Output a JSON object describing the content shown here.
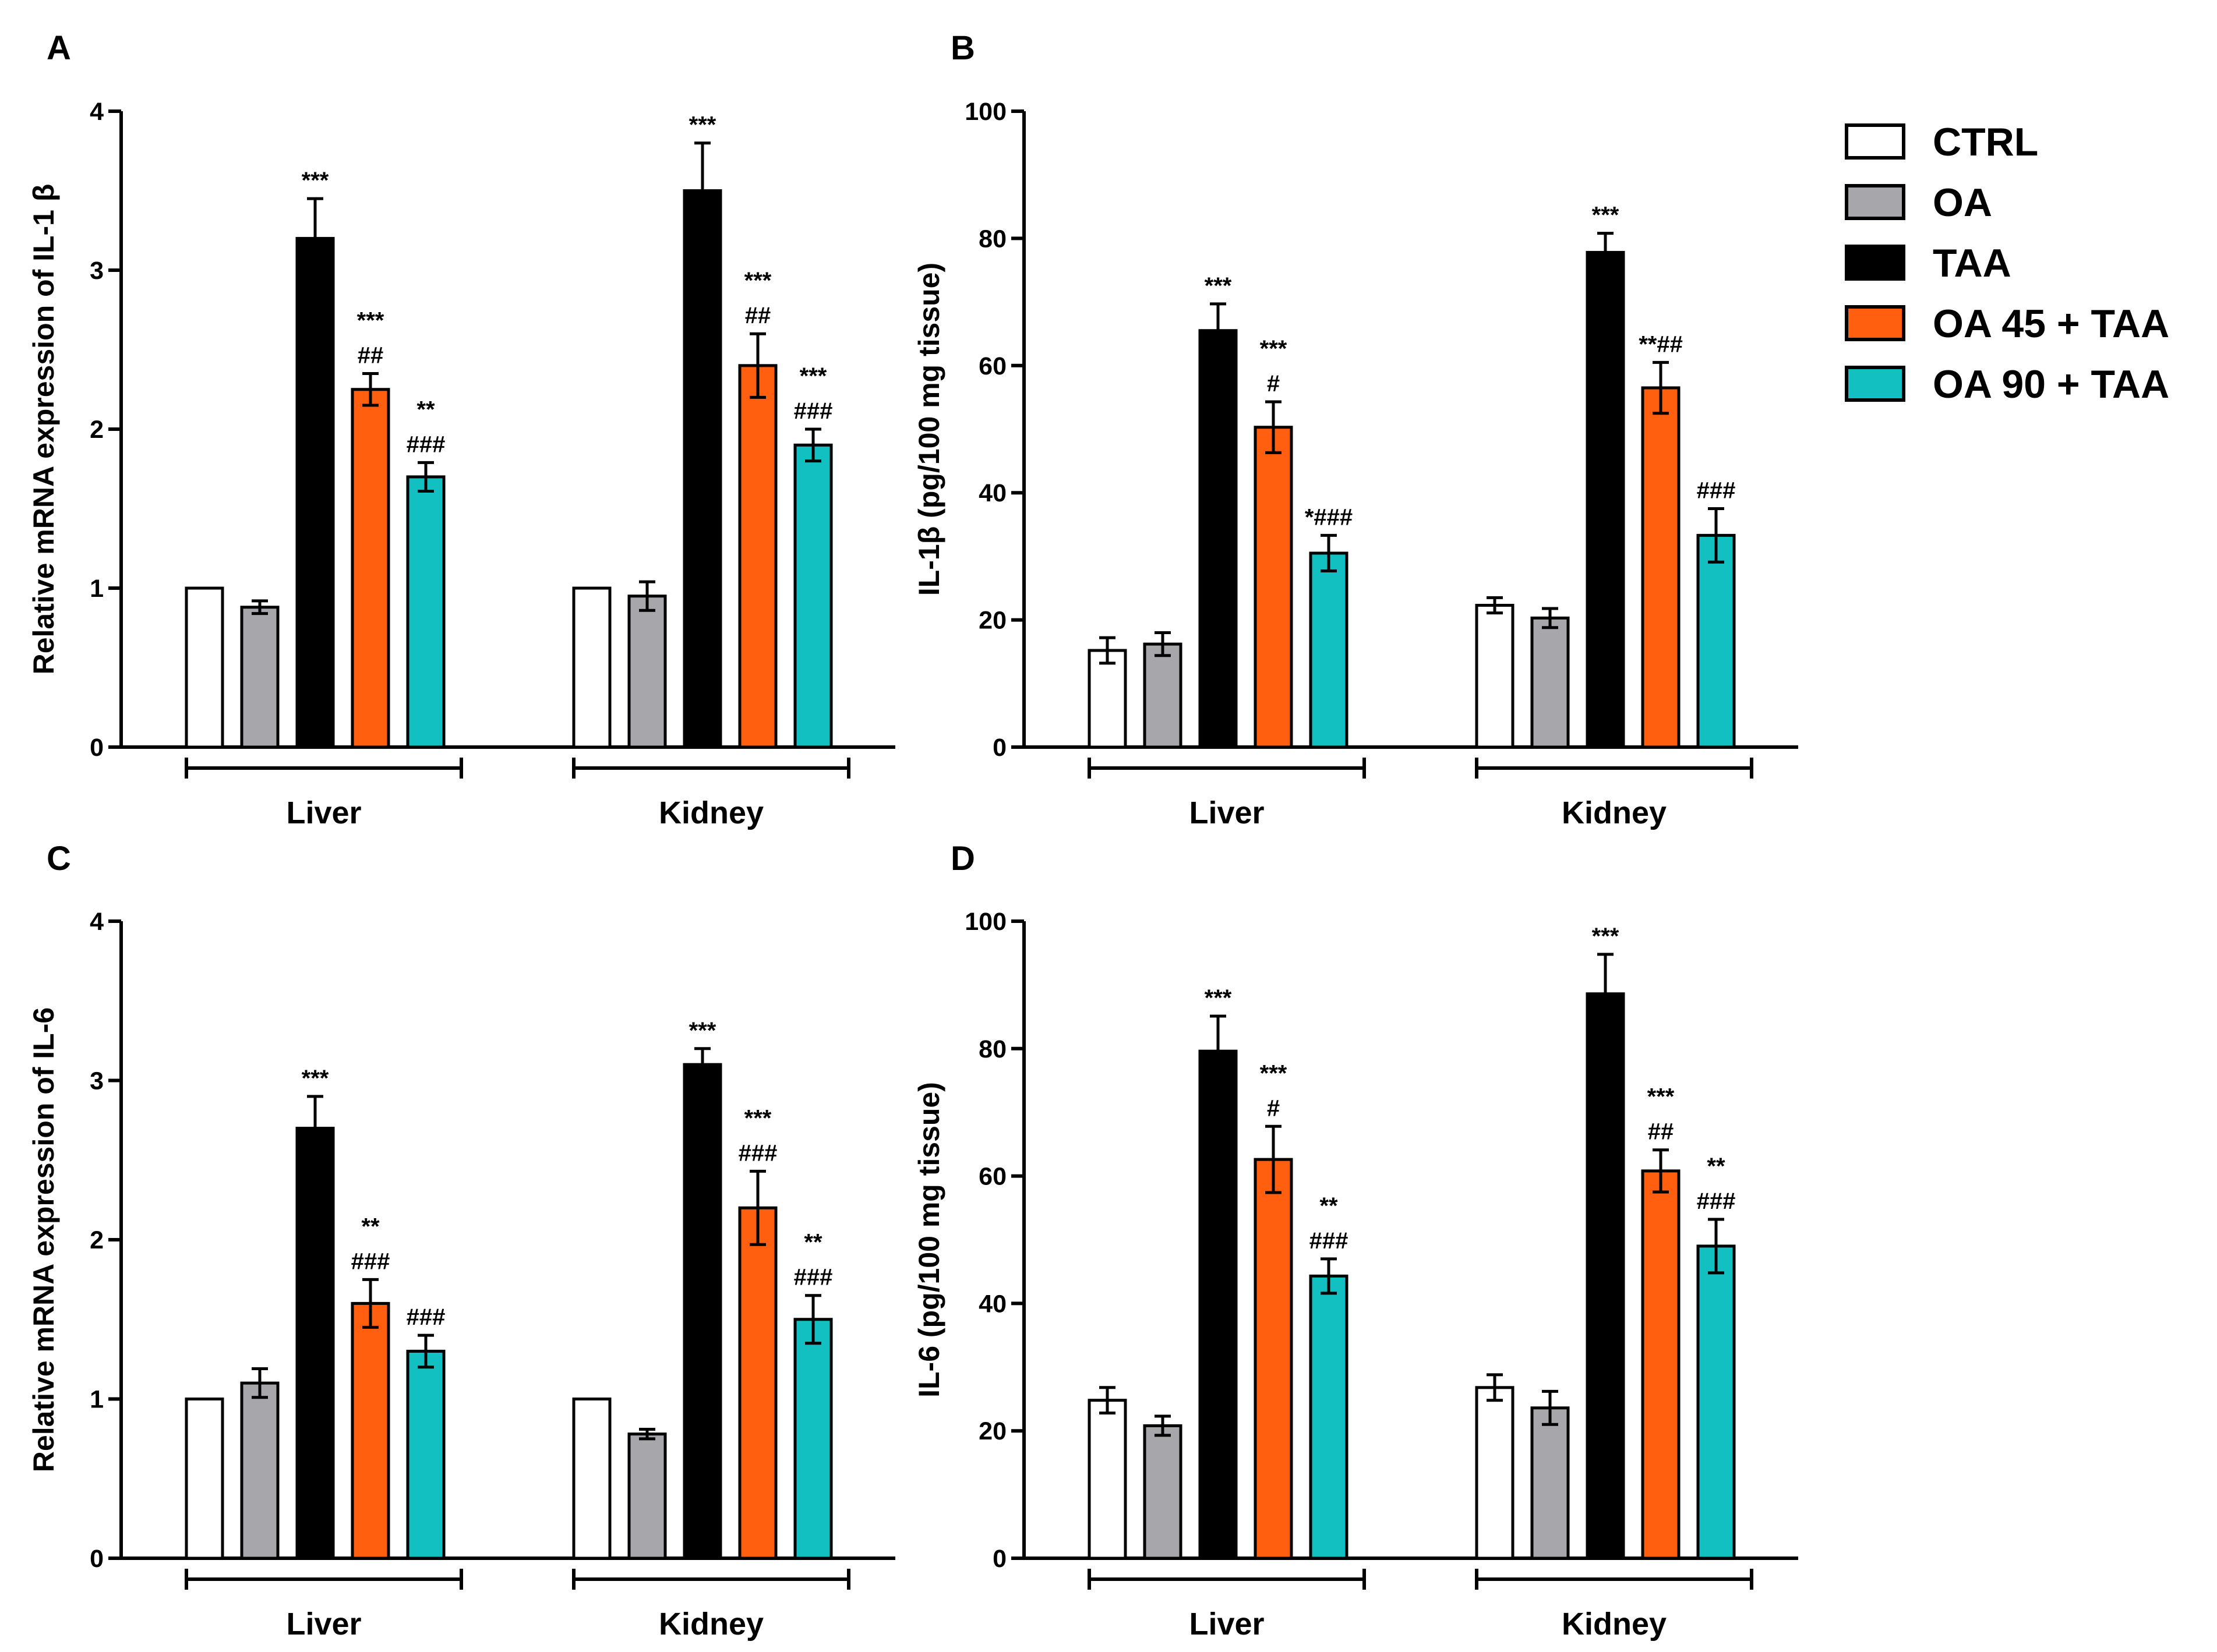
{
  "legend": {
    "position": "top-right",
    "items": [
      {
        "label": "CTRL",
        "color": "#ffffff"
      },
      {
        "label": "OA",
        "color": "#a7a6ab"
      },
      {
        "label": "TAA",
        "color": "#000000"
      },
      {
        "label": "OA 45 + TAA",
        "color": "#ff5f0f"
      },
      {
        "label": "OA 90 + TAA",
        "color": "#12c0c2"
      }
    ]
  },
  "chart_data": [
    {
      "panel": "A",
      "type": "bar",
      "ylabel": "Relative mRNA expression of IL-1 β",
      "ylim": [
        0,
        4
      ],
      "yticks": [
        0,
        1,
        2,
        3,
        4
      ],
      "categories": [
        "Liver",
        "Kidney"
      ],
      "series": [
        {
          "name": "CTRL",
          "values": [
            1.0,
            1.0
          ],
          "errors": [
            0,
            0
          ],
          "annotations": [
            "",
            ""
          ]
        },
        {
          "name": "OA",
          "values": [
            0.88,
            0.95
          ],
          "errors": [
            0.04,
            0.09
          ],
          "annotations": [
            "",
            ""
          ]
        },
        {
          "name": "TAA",
          "values": [
            3.2,
            3.5
          ],
          "errors": [
            0.25,
            0.3
          ],
          "annotations": [
            "***",
            "***"
          ]
        },
        {
          "name": "OA 45 + TAA",
          "values": [
            2.25,
            2.4
          ],
          "errors": [
            0.1,
            0.2
          ],
          "annotations": [
            "***\n##",
            "***\n##"
          ]
        },
        {
          "name": "OA 90 + TAA",
          "values": [
            1.7,
            1.9
          ],
          "errors": [
            0.09,
            0.1
          ],
          "annotations": [
            "**\n###",
            "***\n###"
          ]
        }
      ]
    },
    {
      "panel": "B",
      "type": "bar",
      "ylabel": "IL-1β (pg/100 mg tissue)",
      "ylim": [
        0,
        100
      ],
      "yticks": [
        0,
        20,
        40,
        60,
        80,
        100
      ],
      "categories": [
        "Liver",
        "Kidney"
      ],
      "series": [
        {
          "name": "CTRL",
          "values": [
            15.2,
            22.3
          ],
          "errors": [
            2.0,
            1.2
          ],
          "annotations": [
            "",
            ""
          ]
        },
        {
          "name": "OA",
          "values": [
            16.2,
            20.3
          ],
          "errors": [
            1.8,
            1.5
          ],
          "annotations": [
            "",
            ""
          ]
        },
        {
          "name": "TAA",
          "values": [
            65.5,
            77.8
          ],
          "errors": [
            4.2,
            3.0
          ],
          "annotations": [
            "***",
            "***"
          ]
        },
        {
          "name": "OA 45 + TAA",
          "values": [
            50.3,
            56.5
          ],
          "errors": [
            4.0,
            4.0
          ],
          "annotations": [
            "***\n#",
            "**##"
          ]
        },
        {
          "name": "OA 90 + TAA",
          "values": [
            30.5,
            33.3
          ],
          "errors": [
            2.8,
            4.2
          ],
          "annotations": [
            "*###",
            "###"
          ]
        }
      ]
    },
    {
      "panel": "C",
      "type": "bar",
      "ylabel": "Relative mRNA expression of IL-6",
      "ylim": [
        0,
        4
      ],
      "yticks": [
        0,
        1,
        2,
        3,
        4
      ],
      "categories": [
        "Liver",
        "Kidney"
      ],
      "series": [
        {
          "name": "CTRL",
          "values": [
            1.0,
            1.0
          ],
          "errors": [
            0,
            0
          ],
          "annotations": [
            "",
            ""
          ]
        },
        {
          "name": "OA",
          "values": [
            1.1,
            0.78
          ],
          "errors": [
            0.09,
            0.03
          ],
          "annotations": [
            "",
            ""
          ]
        },
        {
          "name": "TAA",
          "values": [
            2.7,
            3.1
          ],
          "errors": [
            0.2,
            0.1
          ],
          "annotations": [
            "***",
            "***"
          ]
        },
        {
          "name": "OA 45 + TAA",
          "values": [
            1.6,
            2.2
          ],
          "errors": [
            0.15,
            0.23
          ],
          "annotations": [
            "**\n###",
            "***\n###"
          ]
        },
        {
          "name": "OA 90 + TAA",
          "values": [
            1.3,
            1.5
          ],
          "errors": [
            0.1,
            0.15
          ],
          "annotations": [
            "###",
            "**\n###"
          ]
        }
      ]
    },
    {
      "panel": "D",
      "type": "bar",
      "ylabel": "IL-6 (pg/100 mg tissue)",
      "ylim": [
        0,
        100
      ],
      "yticks": [
        0,
        20,
        40,
        60,
        80,
        100
      ],
      "categories": [
        "Liver",
        "Kidney"
      ],
      "series": [
        {
          "name": "CTRL",
          "values": [
            24.8,
            26.8
          ],
          "errors": [
            2.0,
            2.0
          ],
          "annotations": [
            "",
            ""
          ]
        },
        {
          "name": "OA",
          "values": [
            20.8,
            23.6
          ],
          "errors": [
            1.5,
            2.6
          ],
          "annotations": [
            "",
            ""
          ]
        },
        {
          "name": "TAA",
          "values": [
            79.6,
            88.6
          ],
          "errors": [
            5.5,
            6.2
          ],
          "annotations": [
            "***",
            "***"
          ]
        },
        {
          "name": "OA 45 + TAA",
          "values": [
            62.6,
            60.8
          ],
          "errors": [
            5.2,
            3.3
          ],
          "annotations": [
            "***\n#",
            "***\n##"
          ]
        },
        {
          "name": "OA 90 + TAA",
          "values": [
            44.3,
            49.0
          ],
          "errors": [
            2.7,
            4.2
          ],
          "annotations": [
            "**\n###",
            "**\n###"
          ]
        }
      ]
    }
  ]
}
